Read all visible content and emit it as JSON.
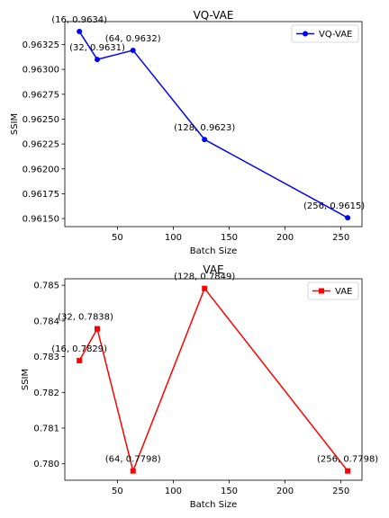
{
  "chart_data": [
    {
      "type": "line",
      "title": "VQ-VAE",
      "xlabel": "Batch Size",
      "ylabel": "SSIM",
      "xlim": [
        3.0,
        268.8
      ],
      "ylim": [
        0.961419,
        0.963481
      ],
      "xticks": [
        50,
        100,
        150,
        200,
        250
      ],
      "xtick_labels": [
        "50",
        "100",
        "150",
        "200",
        "250"
      ],
      "yticks": [
        0.9615,
        0.96175,
        0.962,
        0.96225,
        0.9625,
        0.96275,
        0.963,
        0.96325
      ],
      "ytick_labels": [
        "0.96150",
        "0.96175",
        "0.96200",
        "0.96225",
        "0.96250",
        "0.96275",
        "0.96300",
        "0.96325"
      ],
      "grid": false,
      "legend": "top-right",
      "series": [
        {
          "name": "VQ-VAE",
          "color": "#0000ff",
          "marker": "circle",
          "x": [
            16,
            32,
            64,
            128,
            256
          ],
          "y": [
            0.963381,
            0.9631,
            0.963192,
            0.962295,
            0.961508
          ],
          "labels": [
            "(16, 0.9634)",
            "(32, 0.9631)",
            "(64, 0.9632)",
            "(128, 0.9623)",
            "(256, 0.9615)"
          ]
        }
      ]
    },
    {
      "type": "line",
      "title": "VAE",
      "xlabel": "Batch Size",
      "ylabel": "SSIM",
      "xlim": [
        3.0,
        268.8
      ],
      "ylim": [
        0.77954,
        0.78518
      ],
      "xticks": [
        50,
        100,
        150,
        200,
        250
      ],
      "xtick_labels": [
        "50",
        "100",
        "150",
        "200",
        "250"
      ],
      "yticks": [
        0.78,
        0.781,
        0.782,
        0.783,
        0.784,
        0.785
      ],
      "ytick_labels": [
        "0.780",
        "0.781",
        "0.782",
        "0.783",
        "0.784",
        "0.785"
      ],
      "grid": false,
      "legend": "top-right",
      "series": [
        {
          "name": "VAE",
          "color": "#ff0000",
          "marker": "square",
          "x": [
            16,
            32,
            64,
            128,
            256
          ],
          "y": [
            0.78289,
            0.78378,
            0.7798,
            0.78491,
            0.7798
          ],
          "labels": [
            "(16, 0.7829)",
            "(32, 0.7838)",
            "(64, 0.7798)",
            "(128, 0.7849)",
            "(256, 0.7798)"
          ]
        }
      ]
    }
  ]
}
